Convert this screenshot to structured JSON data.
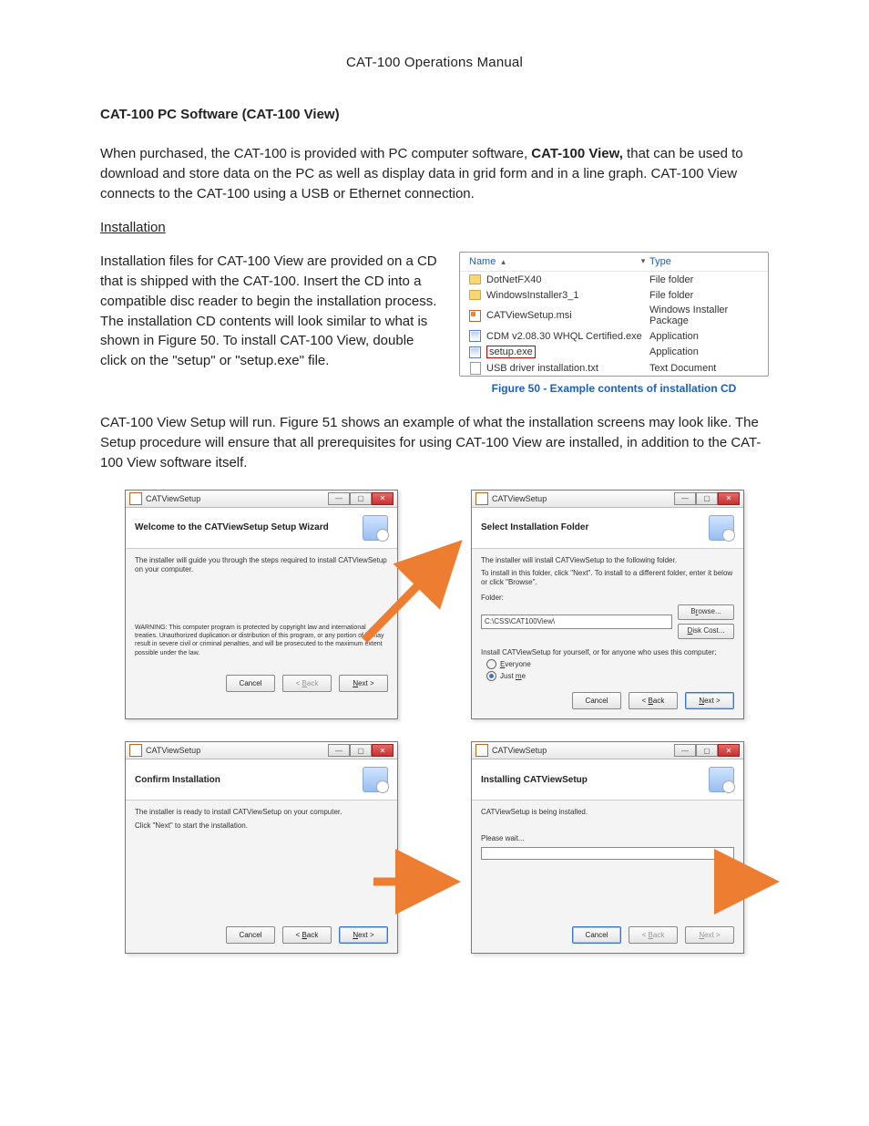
{
  "header": "CAT-100 Operations Manual",
  "section_title": "CAT-100 PC Software (CAT-100 View)",
  "intro_pre": "When purchased, the CAT-100 is provided with PC computer software, ",
  "intro_bold": "CAT-100 View,",
  "intro_post": " that can be used to download and store data on the PC as well as display data in grid form and in a line graph. CAT-100 View connects to the CAT-100 using a USB or Ethernet connection.",
  "subhead_install": "Installation",
  "install_para_left": "Installation files for CAT-100 View are provided on a CD that is shipped with the CAT-100. Insert the CD into a compatible disc reader to begin the installation process. The installation CD contents will look similar to what is shown in Figure 50. To install CAT-100 View, double click on the \"setup\" or \"setup.exe\" file.",
  "file_box": {
    "col_name": "Name",
    "col_type": "Type",
    "rows": [
      {
        "icon": "folder",
        "name": "DotNetFX40",
        "type": "File folder"
      },
      {
        "icon": "folder",
        "name": "WindowsInstaller3_1",
        "type": "File folder"
      },
      {
        "icon": "msi",
        "name": "CATViewSetup.msi",
        "type": "Windows Installer Package"
      },
      {
        "icon": "app",
        "name": "CDM v2.08.30 WHQL Certified.exe",
        "type": "Application"
      },
      {
        "icon": "app",
        "name": "setup.exe",
        "type": "Application",
        "highlight": true
      },
      {
        "icon": "txt",
        "name": "USB driver installation.txt",
        "type": "Text Document"
      }
    ]
  },
  "fig50_caption": "Figure 50 - Example contents of installation CD",
  "para_after": "CAT-100 View Setup will run. Figure 51 shows an example of what the installation screens may look like. The Setup procedure will ensure that all prerequisites for using CAT-100 View are installed, in addition to the CAT-100 View software itself.",
  "win_title": "CATViewSetup",
  "dlg1": {
    "heading": "Welcome to the CATViewSetup Setup Wizard",
    "body1": "The installer will guide you through the steps required to install CATViewSetup on your computer.",
    "warn": "WARNING: This computer program is protected by copyright law and international treaties. Unauthorized duplication or distribution of this program, or any portion of it, may result in severe civil or criminal penalties, and will be prosecuted to the maximum extent possible under the law.",
    "cancel": "Cancel",
    "back": "< Back",
    "next": "Next >"
  },
  "dlg2": {
    "heading": "Select Installation Folder",
    "body1": "The installer will install CATViewSetup to the following folder.",
    "body2": "To install in this folder, click \"Next\". To install to a different folder, enter it below or click \"Browse\".",
    "folder_label": "Folder:",
    "folder_path": "C:\\CSS\\CAT100View\\",
    "browse": "Browse...",
    "diskcost": "Disk Cost...",
    "install_for": "Install CATViewSetup for yourself, or for anyone who uses this computer:",
    "everyone": "Everyone",
    "justme": "Just me",
    "cancel": "Cancel",
    "back": "< Back",
    "next": "Next >"
  },
  "dlg3": {
    "heading": "Confirm Installation",
    "body1": "The installer is ready to install CATViewSetup on your computer.",
    "body2": "Click \"Next\" to start the installation.",
    "cancel": "Cancel",
    "back": "< Back",
    "next": "Next >"
  },
  "dlg4": {
    "heading": "Installing CATViewSetup",
    "body1": "CATViewSetup is being installed.",
    "wait": "Please wait...",
    "cancel": "Cancel",
    "back": "< Back",
    "next": "Next >"
  },
  "arrow_color": "#ed7d31"
}
